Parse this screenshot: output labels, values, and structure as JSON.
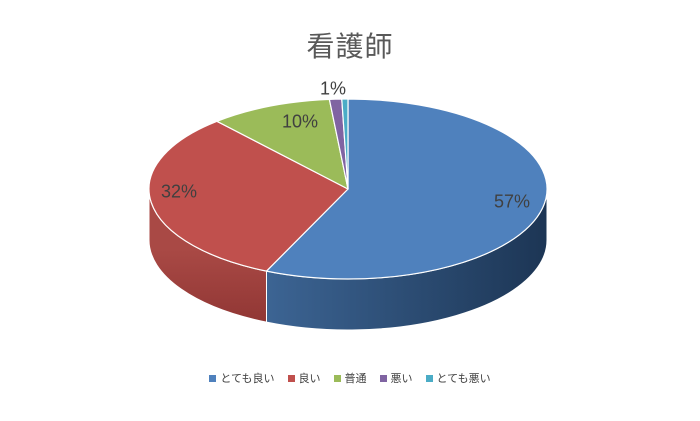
{
  "chart_data": {
    "type": "pie",
    "style": "3d",
    "title": "看護師",
    "legend_position": "bottom",
    "start_angle_deg": 0,
    "direction": "clockwise",
    "series": [
      {
        "label": "とても良い",
        "value": 57,
        "display_label": "57%",
        "color": "#4F81BD",
        "side_from": "#3E6797",
        "side_to": "#1C3554"
      },
      {
        "label": "良い",
        "value": 32,
        "display_label": "32%",
        "color": "#C0504D",
        "side_from": "#A94945",
        "side_to": "#8B3230"
      },
      {
        "label": "普通",
        "value": 10,
        "display_label": "10%",
        "color": "#9BBB59"
      },
      {
        "label": "悪い",
        "value": 1,
        "display_label": "1%",
        "color": "#8064A2"
      },
      {
        "label": "とても悪い",
        "value": 0.5,
        "display_label": "",
        "color": "#4BACC6"
      }
    ]
  },
  "colors": {
    "background": "#FFFFFF",
    "title_text": "#595959",
    "data_label_text": "#404040",
    "legend_text": "#404040",
    "slice_border": "#FFFFFF"
  }
}
